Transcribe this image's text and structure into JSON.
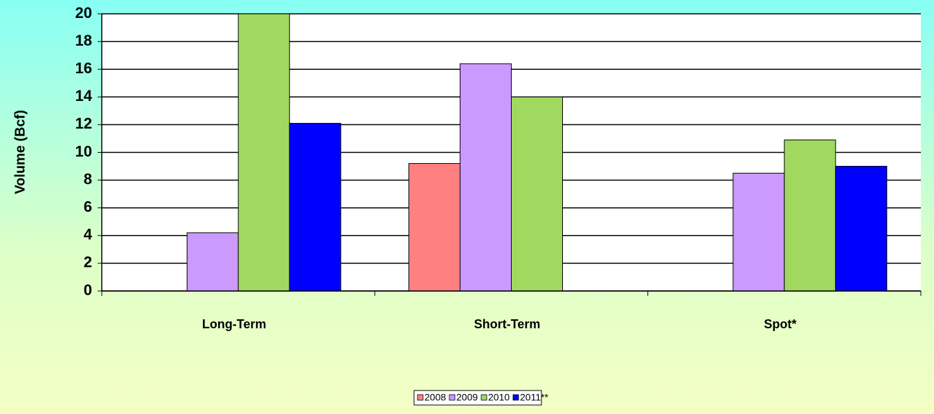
{
  "chart_data": {
    "type": "bar",
    "y_label": "Volume (Bcf)",
    "categories": [
      "Long-Term",
      "Short-Term",
      "Spot*"
    ],
    "series": [
      {
        "name": "2008",
        "color": "#ff8080",
        "values": [
          null,
          9.2,
          null
        ]
      },
      {
        "name": "2009",
        "color": "#cc99ff",
        "values": [
          4.2,
          16.4,
          8.5
        ]
      },
      {
        "name": "2010",
        "color": "#a0d860",
        "values": [
          20,
          14.0,
          10.9
        ]
      },
      {
        "name": "2011**",
        "color": "#0000ff",
        "values": [
          12.1,
          null,
          9.0
        ]
      }
    ],
    "ylim": [
      0,
      20
    ],
    "yticks": [
      0,
      2,
      4,
      6,
      8,
      10,
      12,
      14,
      16,
      18,
      20
    ],
    "grid": true,
    "legend": "bottom"
  }
}
